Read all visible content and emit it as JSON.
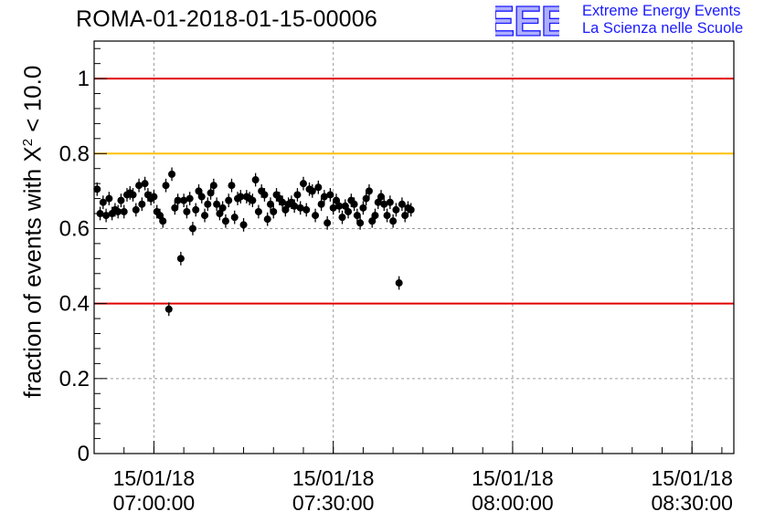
{
  "header": {
    "title": "ROMA-01-2018-01-15-00006",
    "logo_mark": "EEE",
    "logo_line1": "Extreme Energy Events",
    "logo_line2": "La Scienza nelle Scuole"
  },
  "colors": {
    "logo": "#1a1aff",
    "ref_red": "#e00000",
    "ref_orange": "#ffc000",
    "points": "#000000",
    "grid": "#9a9a9a"
  },
  "chart_data": {
    "type": "scatter",
    "title": "ROMA-01-2018-01-15-00006",
    "ylabel_prefix": "fraction of events with X",
    "ylabel_sup": "2",
    "ylabel_suffix": " < 10.0",
    "xlabel": "",
    "x_axis": "time",
    "xlim": [
      "2018-01-15 06:50:00",
      "2018-01-15 08:37:00"
    ],
    "ylim": [
      0,
      1.1
    ],
    "yticks": [
      0,
      0.2,
      0.4,
      0.6,
      0.8,
      1
    ],
    "ytick_labels": [
      "0",
      "0.2",
      "0.4",
      "0.6",
      "0.8",
      "1"
    ],
    "xticks": [
      "2018-01-15 07:00:00",
      "2018-01-15 07:30:00",
      "2018-01-15 08:00:00",
      "2018-01-15 08:30:00"
    ],
    "xtick_labels": [
      [
        "15/01/18",
        "07:00:00"
      ],
      [
        "15/01/18",
        "07:30:00"
      ],
      [
        "15/01/18",
        "08:00:00"
      ],
      [
        "15/01/18",
        "08:30:00"
      ]
    ],
    "grid": "dashed at major ticks",
    "reference_lines": [
      {
        "y": 1.0,
        "color": "#e00000"
      },
      {
        "y": 0.8,
        "color": "#ffc000"
      },
      {
        "y": 0.4,
        "color": "#e00000"
      }
    ],
    "series": [
      {
        "start": "2018-01-15 06:50:30",
        "interval_seconds": 30,
        "y": [
          0.705,
          0.64,
          0.67,
          0.635,
          0.68,
          0.64,
          0.65,
          0.645,
          0.675,
          0.645,
          0.69,
          0.695,
          0.69,
          0.65,
          0.715,
          0.665,
          0.72,
          0.69,
          0.68,
          0.685,
          0.645,
          0.635,
          0.62,
          0.715,
          0.385,
          0.745,
          0.655,
          0.675,
          0.52,
          0.675,
          0.645,
          0.68,
          0.6,
          0.65,
          0.7,
          0.685,
          0.635,
          0.665,
          0.695,
          0.715,
          0.665,
          0.64,
          0.655,
          0.62,
          0.675,
          0.715,
          0.63,
          0.68,
          0.685,
          0.61,
          0.685,
          0.68,
          0.675,
          0.73,
          0.645,
          0.7,
          0.69,
          0.625,
          0.665,
          0.645,
          0.69,
          0.68,
          0.67,
          0.65,
          0.665,
          0.67,
          0.66,
          0.69,
          0.655,
          0.72,
          0.65,
          0.705,
          0.7,
          0.635,
          0.71,
          0.665,
          0.685,
          0.615,
          0.69,
          0.655,
          0.675,
          0.66,
          0.63,
          0.66,
          0.645,
          0.675,
          0.665,
          0.635,
          0.615,
          0.655,
          0.68,
          0.7,
          0.62,
          0.635,
          0.67,
          0.685,
          0.665,
          0.635,
          0.67,
          0.62,
          0.65,
          0.455,
          0.665,
          0.635,
          0.655,
          0.65
        ],
        "error": 0.018
      }
    ]
  }
}
